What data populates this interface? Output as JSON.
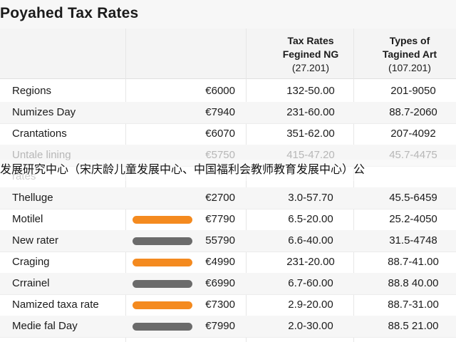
{
  "title": "Poyahed Tax Rates",
  "headers": {
    "col3": {
      "line1": "Tax Rates",
      "line2": "Fegined NG",
      "line3": "(27.201)"
    },
    "col4": {
      "line1": "Types of",
      "line2": "Tagined Art",
      "line3": "(107.201)"
    }
  },
  "rows": [
    {
      "region": "Regions",
      "bar": "",
      "amount": "€6000",
      "rate": "132-50.00",
      "type": "201-9050"
    },
    {
      "region": "Numizes Day",
      "bar": "",
      "amount": "€7940",
      "rate": "231-60.00",
      "type": "88.7-2060"
    },
    {
      "region": "Crantations",
      "bar": "",
      "amount": "€6070",
      "rate": "351-62.00",
      "type": "207-4092"
    },
    {
      "region": "Untale lining",
      "bar": "",
      "amount": "€5750",
      "rate": "415-47.20",
      "type": "45.7-4475"
    },
    {
      "region": "rates",
      "bar": "",
      "amount": "",
      "rate": "",
      "type": ""
    },
    {
      "region": "Thelluge",
      "bar": "",
      "amount": "€2700",
      "rate": "3.0-57.70",
      "type": "45.5-6459"
    },
    {
      "region": "Motilel",
      "bar": "orange",
      "amount": "€7790",
      "rate": "6.5-20.00",
      "type": "25.2-4050"
    },
    {
      "region": "New rater",
      "bar": "gray",
      "amount": "55790",
      "rate": "6.6-40.00",
      "type": "31.5-4748"
    },
    {
      "region": "Craging",
      "bar": "orange",
      "amount": "€4990",
      "rate": "231-20.00",
      "type": "88.7-41.00"
    },
    {
      "region": "Crrainel",
      "bar": "gray",
      "amount": "€6990",
      "rate": "6.7-60.00",
      "type": "88.8 40.00"
    },
    {
      "region": "Namized taxa rate",
      "bar": "orange",
      "amount": "€7300",
      "rate": "2.9-20.00",
      "type": "88.7-31.00"
    },
    {
      "region": "Medie fal Day",
      "bar": "gray",
      "amount": "€7990",
      "rate": "2.0-30.00",
      "type": "88.5 21.00"
    }
  ],
  "overlay_text": "发展研究中心（宋庆龄儿童发展中心、中国福利会教师教育发展中心）公",
  "colors": {
    "orange": "#f48a1f",
    "gray": "#6b6b6b"
  }
}
